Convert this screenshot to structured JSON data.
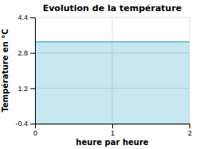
{
  "chart_data": {
    "type": "area",
    "title": "Evolution de la température",
    "xlabel": "heure par heure",
    "ylabel": "Température en °C",
    "x": [
      0,
      2
    ],
    "values": [
      3.3,
      3.3
    ],
    "color": "#5bb8d4",
    "xlim": [
      0,
      2
    ],
    "ylim": [
      -0.4,
      4.4
    ],
    "xticks": [
      0,
      1,
      2
    ],
    "yticks": [
      -0.4,
      1.2,
      2.8,
      4.4
    ],
    "grid": true
  }
}
